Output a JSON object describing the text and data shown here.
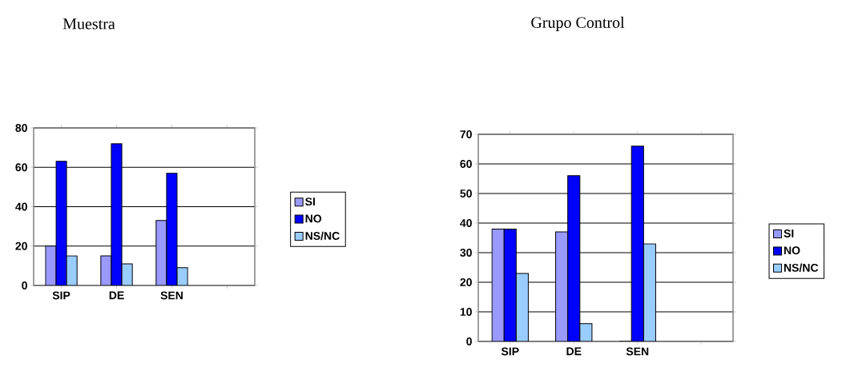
{
  "chart_data": [
    {
      "type": "bar",
      "title": "Muestra",
      "categories": [
        "SIP",
        "DE",
        "SEN",
        null
      ],
      "series": [
        {
          "name": "SI",
          "color": "#9999ff",
          "values": [
            20,
            15,
            33,
            null
          ]
        },
        {
          "name": "NO",
          "color": "#0000ff",
          "values": [
            63,
            72,
            57,
            null
          ]
        },
        {
          "name": "NS/NC",
          "color": "#99ccff",
          "values": [
            15,
            11,
            9,
            null
          ]
        }
      ],
      "ylim": [
        0,
        80
      ],
      "yticks": [
        0,
        20,
        40,
        60,
        80
      ],
      "grid": "y",
      "legend": "right"
    },
    {
      "type": "bar",
      "title": "Grupo Control",
      "categories": [
        "SIP",
        "DE",
        "SEN",
        null
      ],
      "series": [
        {
          "name": "SI",
          "color": "#9999ff",
          "values": [
            38,
            37,
            0,
            null
          ]
        },
        {
          "name": "NO",
          "color": "#0000ff",
          "values": [
            38,
            56,
            66,
            null
          ]
        },
        {
          "name": "NS/NC",
          "color": "#99ccff",
          "values": [
            23,
            6,
            33,
            null
          ]
        }
      ],
      "ylim": [
        0,
        70
      ],
      "yticks": [
        0,
        10,
        20,
        30,
        40,
        50,
        60,
        70
      ],
      "grid": "y",
      "legend": "right"
    }
  ]
}
